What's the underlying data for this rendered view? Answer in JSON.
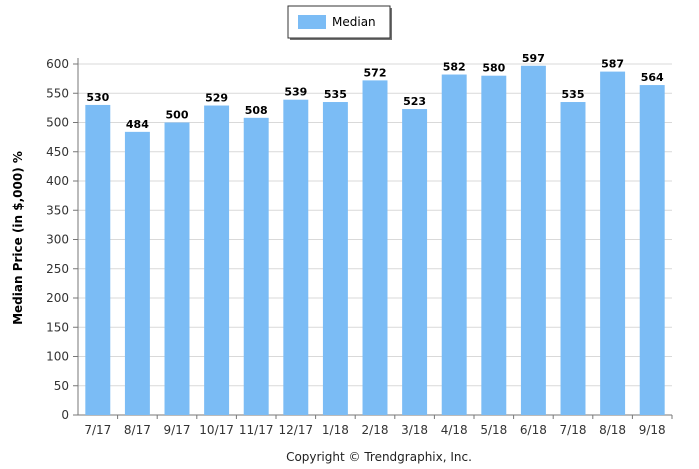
{
  "chart_data": {
    "type": "bar",
    "categories": [
      "7/17",
      "8/17",
      "9/17",
      "10/17",
      "11/17",
      "12/17",
      "1/18",
      "2/18",
      "3/18",
      "4/18",
      "5/18",
      "6/18",
      "7/18",
      "8/18",
      "9/18"
    ],
    "series": [
      {
        "name": "Median",
        "values": [
          530,
          484,
          500,
          529,
          508,
          539,
          535,
          572,
          523,
          582,
          580,
          597,
          535,
          587,
          564
        ]
      }
    ],
    "ylabel": "Median Price (in $,000) %",
    "ylim": [
      0,
      600
    ],
    "yticks": [
      "0",
      "50",
      "100",
      "150",
      "200",
      "250",
      "300",
      "350",
      "400",
      "450",
      "500",
      "550",
      "600"
    ],
    "grid": true,
    "legend_position": "top-center",
    "bar_color": "#7BBCF5"
  },
  "footer": {
    "copyright": "Copyright © Trendgraphix, Inc."
  }
}
